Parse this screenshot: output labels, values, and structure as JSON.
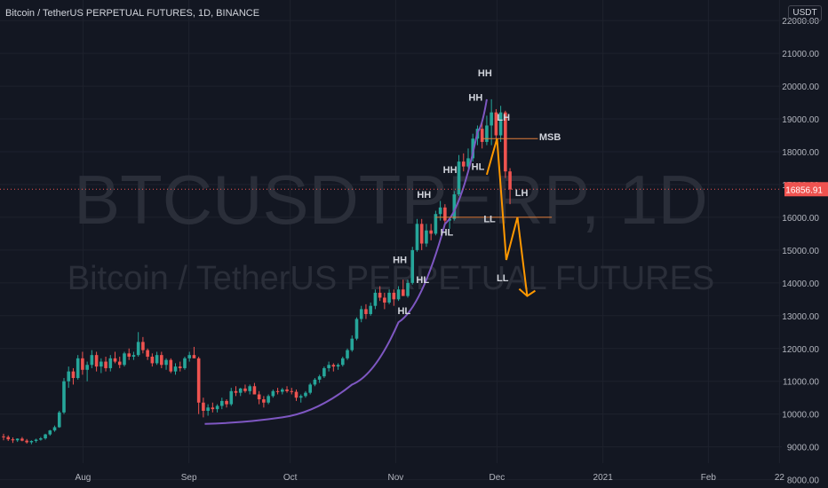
{
  "header": {
    "title": "Bitcoin / TetherUS PERPETUAL FUTURES, 1D, BINANCE",
    "currency": "USDT"
  },
  "watermark": {
    "symbol": "BTCUSDTPERP, 1D",
    "name": "Bitcoin / TetherUS PERPETUAL FUTURES"
  },
  "colors": {
    "background": "#131722",
    "grid": "#1e222d",
    "up": "#26a69a",
    "down": "#ef5350",
    "curve": "#7e57c2",
    "projection": "#ff9800",
    "level_line": "#e37e3a",
    "axis_text": "#b2b5be",
    "label_text": "#d1d4dc",
    "price_tag": "#ef5350"
  },
  "chart_data": {
    "type": "candlestick",
    "title": "Bitcoin / TetherUS PERPETUAL FUTURES, 1D, BINANCE",
    "x_ticks": [
      "Aug",
      "Sep",
      "Oct",
      "Nov",
      "Dec",
      "2021",
      "Feb",
      "22"
    ],
    "y_ticks": [
      "8000.00",
      "9000.00",
      "10000.00",
      "11000.00",
      "12000.00",
      "13000.00",
      "14000.00",
      "15000.00",
      "16000.00",
      "17000.00",
      "18000.00",
      "19000.00",
      "20000.00",
      "21000.00",
      "22000.00"
    ],
    "ylim": [
      7800,
      22600
    ],
    "last_price": "16856.91",
    "candles": [
      [
        9320,
        9400,
        9200,
        9300
      ],
      [
        9300,
        9350,
        9180,
        9230
      ],
      [
        9230,
        9290,
        9120,
        9200
      ],
      [
        9200,
        9260,
        9150,
        9250
      ],
      [
        9250,
        9300,
        9170,
        9190
      ],
      [
        9190,
        9240,
        9100,
        9140
      ],
      [
        9140,
        9200,
        9080,
        9180
      ],
      [
        9180,
        9250,
        9130,
        9220
      ],
      [
        9220,
        9300,
        9190,
        9260
      ],
      [
        9260,
        9400,
        9220,
        9380
      ],
      [
        9380,
        9520,
        9340,
        9500
      ],
      [
        9500,
        9650,
        9460,
        9600
      ],
      [
        9600,
        10100,
        9580,
        10050
      ],
      [
        10050,
        11100,
        10000,
        11000
      ],
      [
        11000,
        11450,
        10800,
        11300
      ],
      [
        11300,
        11400,
        10900,
        11100
      ],
      [
        11100,
        11800,
        11050,
        11700
      ],
      [
        11700,
        11900,
        11200,
        11350
      ],
      [
        11350,
        11600,
        11000,
        11500
      ],
      [
        11500,
        11950,
        11400,
        11800
      ],
      [
        11800,
        11900,
        11300,
        11450
      ],
      [
        11450,
        11700,
        11250,
        11600
      ],
      [
        11600,
        11750,
        11300,
        11400
      ],
      [
        11400,
        11800,
        11300,
        11700
      ],
      [
        11700,
        11900,
        11550,
        11600
      ],
      [
        11600,
        11750,
        11400,
        11500
      ],
      [
        11500,
        11900,
        11450,
        11850
      ],
      [
        11850,
        12000,
        11650,
        11750
      ],
      [
        11750,
        11900,
        11650,
        11800
      ],
      [
        11800,
        12500,
        11750,
        12200
      ],
      [
        12200,
        12350,
        11850,
        11950
      ],
      [
        11950,
        12000,
        11650,
        11750
      ],
      [
        11750,
        11850,
        11450,
        11550
      ],
      [
        11550,
        11900,
        11500,
        11800
      ],
      [
        11800,
        11900,
        11400,
        11500
      ],
      [
        11500,
        11700,
        11350,
        11650
      ],
      [
        11650,
        11700,
        11250,
        11300
      ],
      [
        11300,
        11550,
        11200,
        11450
      ],
      [
        11450,
        11600,
        11300,
        11400
      ],
      [
        11400,
        11750,
        11350,
        11700
      ],
      [
        11700,
        11900,
        11600,
        11800
      ],
      [
        11800,
        12050,
        11750,
        11700
      ],
      [
        11700,
        11750,
        10000,
        10350
      ],
      [
        10350,
        10500,
        9900,
        10100
      ],
      [
        10100,
        10300,
        9950,
        10200
      ],
      [
        10200,
        10350,
        10050,
        10150
      ],
      [
        10150,
        10300,
        10050,
        10250
      ],
      [
        10250,
        10500,
        10150,
        10400
      ],
      [
        10400,
        10450,
        10200,
        10300
      ],
      [
        10300,
        10800,
        10250,
        10700
      ],
      [
        10700,
        10850,
        10550,
        10650
      ],
      [
        10650,
        10800,
        10550,
        10780
      ],
      [
        10780,
        10900,
        10650,
        10700
      ],
      [
        10700,
        10900,
        10600,
        10850
      ],
      [
        10850,
        10950,
        10700,
        10600
      ],
      [
        10600,
        10700,
        10300,
        10450
      ],
      [
        10450,
        10550,
        10200,
        10350
      ],
      [
        10350,
        10600,
        10300,
        10550
      ],
      [
        10550,
        10750,
        10500,
        10700
      ],
      [
        10700,
        10800,
        10600,
        10680
      ],
      [
        10680,
        10800,
        10600,
        10750
      ],
      [
        10750,
        10850,
        10650,
        10700
      ],
      [
        10700,
        10800,
        10600,
        10680
      ],
      [
        10680,
        10750,
        10400,
        10500
      ],
      [
        10500,
        10600,
        10350,
        10550
      ],
      [
        10550,
        10700,
        10500,
        10650
      ],
      [
        10650,
        10950,
        10600,
        10900
      ],
      [
        10900,
        11100,
        10850,
        11050
      ],
      [
        11050,
        11200,
        10950,
        11150
      ],
      [
        11150,
        11450,
        11100,
        11400
      ],
      [
        11400,
        11600,
        11300,
        11500
      ],
      [
        11500,
        11550,
        11300,
        11450
      ],
      [
        11450,
        11550,
        11350,
        11500
      ],
      [
        11500,
        11750,
        11450,
        11700
      ],
      [
        11700,
        12000,
        11650,
        11950
      ],
      [
        11950,
        12400,
        11900,
        12300
      ],
      [
        12300,
        12950,
        12250,
        12900
      ],
      [
        12900,
        13300,
        12800,
        13200
      ],
      [
        13200,
        13350,
        12900,
        13050
      ],
      [
        13050,
        13400,
        13000,
        13300
      ],
      [
        13300,
        13800,
        13200,
        13700
      ],
      [
        13700,
        13900,
        13450,
        13550
      ],
      [
        13550,
        13700,
        13200,
        13400
      ],
      [
        13400,
        13800,
        13350,
        13700
      ],
      [
        13700,
        13800,
        13300,
        13500
      ],
      [
        13500,
        13900,
        13450,
        13800
      ],
      [
        13800,
        14100,
        13700,
        13600
      ],
      [
        13600,
        14100,
        13550,
        14000
      ],
      [
        14000,
        15100,
        13950,
        15000
      ],
      [
        15000,
        15950,
        14950,
        15800
      ],
      [
        15800,
        15950,
        15000,
        15200
      ],
      [
        15200,
        15800,
        15100,
        15600
      ],
      [
        15600,
        15800,
        15300,
        15500
      ],
      [
        15500,
        16200,
        15450,
        16100
      ],
      [
        16100,
        16500,
        15900,
        16300
      ],
      [
        16300,
        16400,
        15800,
        15900
      ],
      [
        15900,
        16000,
        15650,
        15950
      ],
      [
        15950,
        16800,
        15900,
        16700
      ],
      [
        16700,
        17900,
        16650,
        17700
      ],
      [
        17700,
        17950,
        17400,
        17550
      ],
      [
        17550,
        18100,
        17500,
        17800
      ],
      [
        17800,
        18550,
        17700,
        18400
      ],
      [
        18400,
        18800,
        18200,
        18700
      ],
      [
        18700,
        18900,
        18100,
        18300
      ],
      [
        18300,
        19100,
        18200,
        18800
      ],
      [
        18800,
        19600,
        18200,
        19200
      ],
      [
        19200,
        19300,
        18400,
        18500
      ],
      [
        18500,
        19400,
        18300,
        19200
      ],
      [
        19200,
        19250,
        17200,
        17400
      ],
      [
        17400,
        17500,
        16400,
        16850
      ]
    ]
  },
  "annotations": {
    "labels": [
      {
        "text": "HH",
        "price": 20300,
        "bar": 103.6
      },
      {
        "text": "HH",
        "price": 19550,
        "bar": 101.6
      },
      {
        "text": "LH",
        "price": 18950,
        "bar": 107.6
      },
      {
        "text": "MSB",
        "price": 18350,
        "bar": 117.6
      },
      {
        "text": "HH",
        "price": 17350,
        "bar": 96.1
      },
      {
        "text": "HL",
        "price": 17450,
        "bar": 102.1
      },
      {
        "text": "HH",
        "price": 16600,
        "bar": 90.5
      },
      {
        "text": "LH",
        "price": 16650,
        "bar": 111.5
      },
      {
        "text": "LL",
        "price": 15850,
        "bar": 104.6
      },
      {
        "text": "HL",
        "price": 15450,
        "bar": 95.4
      },
      {
        "text": "HH",
        "price": 14600,
        "bar": 85.3
      },
      {
        "text": "HL",
        "price": 14000,
        "bar": 90.2
      },
      {
        "text": "LL",
        "price": 14050,
        "bar": 107.4
      },
      {
        "text": "HL",
        "price": 13050,
        "bar": 86.2
      }
    ],
    "levels": [
      {
        "price": 18400,
        "from_bar": 103,
        "to_bar": 115
      },
      {
        "price": 16000,
        "from_bar": 93,
        "to_bar": 118
      }
    ],
    "projection_path": [
      [
        104.0,
        17300
      ],
      [
        106.2,
        18400
      ],
      [
        108.2,
        14700
      ],
      [
        110.6,
        16000
      ],
      [
        112.7,
        13600
      ]
    ],
    "curve": [
      [
        43.3,
        9700
      ],
      [
        60,
        9900
      ],
      [
        75,
        10900
      ],
      [
        85,
        12800
      ],
      [
        95,
        15800
      ],
      [
        102,
        18600
      ],
      [
        104,
        19600
      ]
    ]
  }
}
